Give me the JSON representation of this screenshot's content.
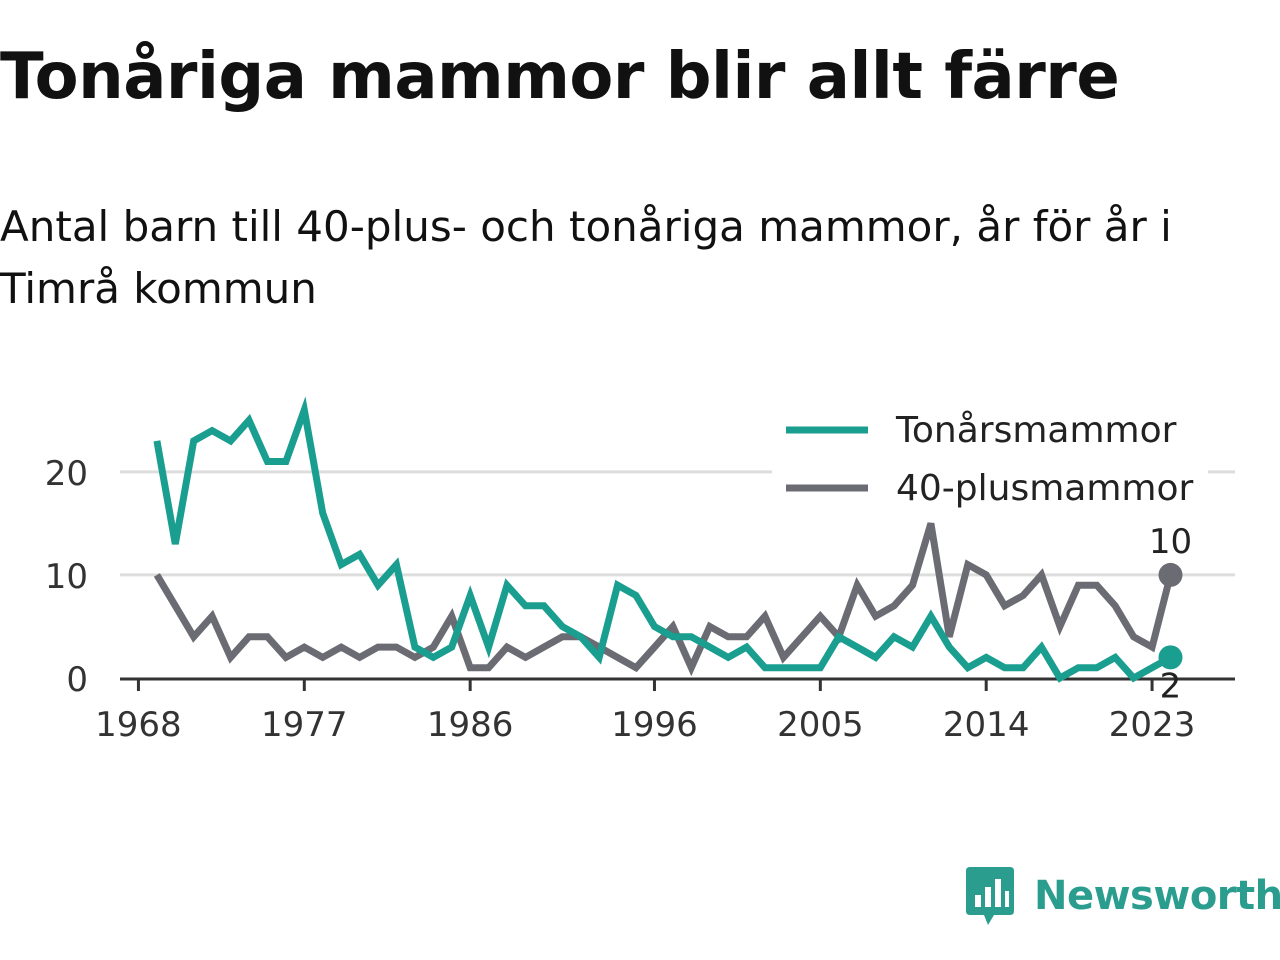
{
  "header": {
    "title": "Tonåriga mammor blir allt färre",
    "subtitle": "Antal barn till 40-plus- och tonåriga mammor, år för år i Timrå kommun"
  },
  "brand": {
    "name": "Newsworthy",
    "icon": "newsworthy-logo-icon",
    "color": "#2a9d8f"
  },
  "chart_data": {
    "type": "line",
    "title": "Tonåriga mammor blir allt färre",
    "subtitle": "Antal barn till 40-plus- och tonåriga mammor, år för år i Timrå kommun",
    "xlabel": "",
    "ylabel": "",
    "x": [
      1969,
      1970,
      1971,
      1972,
      1973,
      1974,
      1975,
      1976,
      1977,
      1978,
      1979,
      1980,
      1981,
      1982,
      1983,
      1984,
      1985,
      1986,
      1987,
      1988,
      1989,
      1990,
      1991,
      1992,
      1993,
      1994,
      1995,
      1996,
      1997,
      1998,
      1999,
      2000,
      2001,
      2002,
      2003,
      2004,
      2005,
      2006,
      2007,
      2008,
      2009,
      2010,
      2011,
      2012,
      2013,
      2014,
      2015,
      2016,
      2017,
      2018,
      2019,
      2020,
      2021,
      2022,
      2023,
      2024
    ],
    "xlim": [
      1967,
      2027.5
    ],
    "ylim": [
      0,
      26
    ],
    "xticks": [
      "1968",
      "1977",
      "1986",
      "1996",
      "2005",
      "2014",
      "2023"
    ],
    "yticks": [
      "0",
      "10",
      "20"
    ],
    "grid": true,
    "legend_position": "top-right",
    "series": [
      {
        "name": "Tonårsmammor",
        "color": "#1a9e8f",
        "values": [
          23,
          13,
          23,
          24,
          23,
          25,
          21,
          21,
          26,
          16,
          11,
          12,
          9,
          11,
          3,
          2,
          3,
          8,
          3,
          9,
          7,
          7,
          5,
          4,
          2,
          9,
          8,
          5,
          4,
          4,
          3,
          2,
          3,
          1,
          1,
          1,
          1,
          4,
          3,
          2,
          4,
          3,
          6,
          3,
          1,
          2,
          1,
          1,
          3,
          0,
          1,
          1,
          2,
          0,
          1,
          2
        ],
        "end_label": "2"
      },
      {
        "name": "40-plusmammor",
        "color": "#6b6b73",
        "values": [
          10,
          7,
          4,
          6,
          2,
          4,
          4,
          2,
          3,
          2,
          3,
          2,
          3,
          3,
          2,
          3,
          6,
          1,
          1,
          3,
          2,
          3,
          4,
          4,
          3,
          2,
          1,
          3,
          5,
          1,
          5,
          4,
          4,
          6,
          2,
          4,
          6,
          4,
          9,
          6,
          7,
          9,
          15,
          4,
          11,
          10,
          7,
          8,
          10,
          5,
          9,
          9,
          7,
          4,
          3,
          10
        ],
        "end_label": "10"
      }
    ]
  }
}
